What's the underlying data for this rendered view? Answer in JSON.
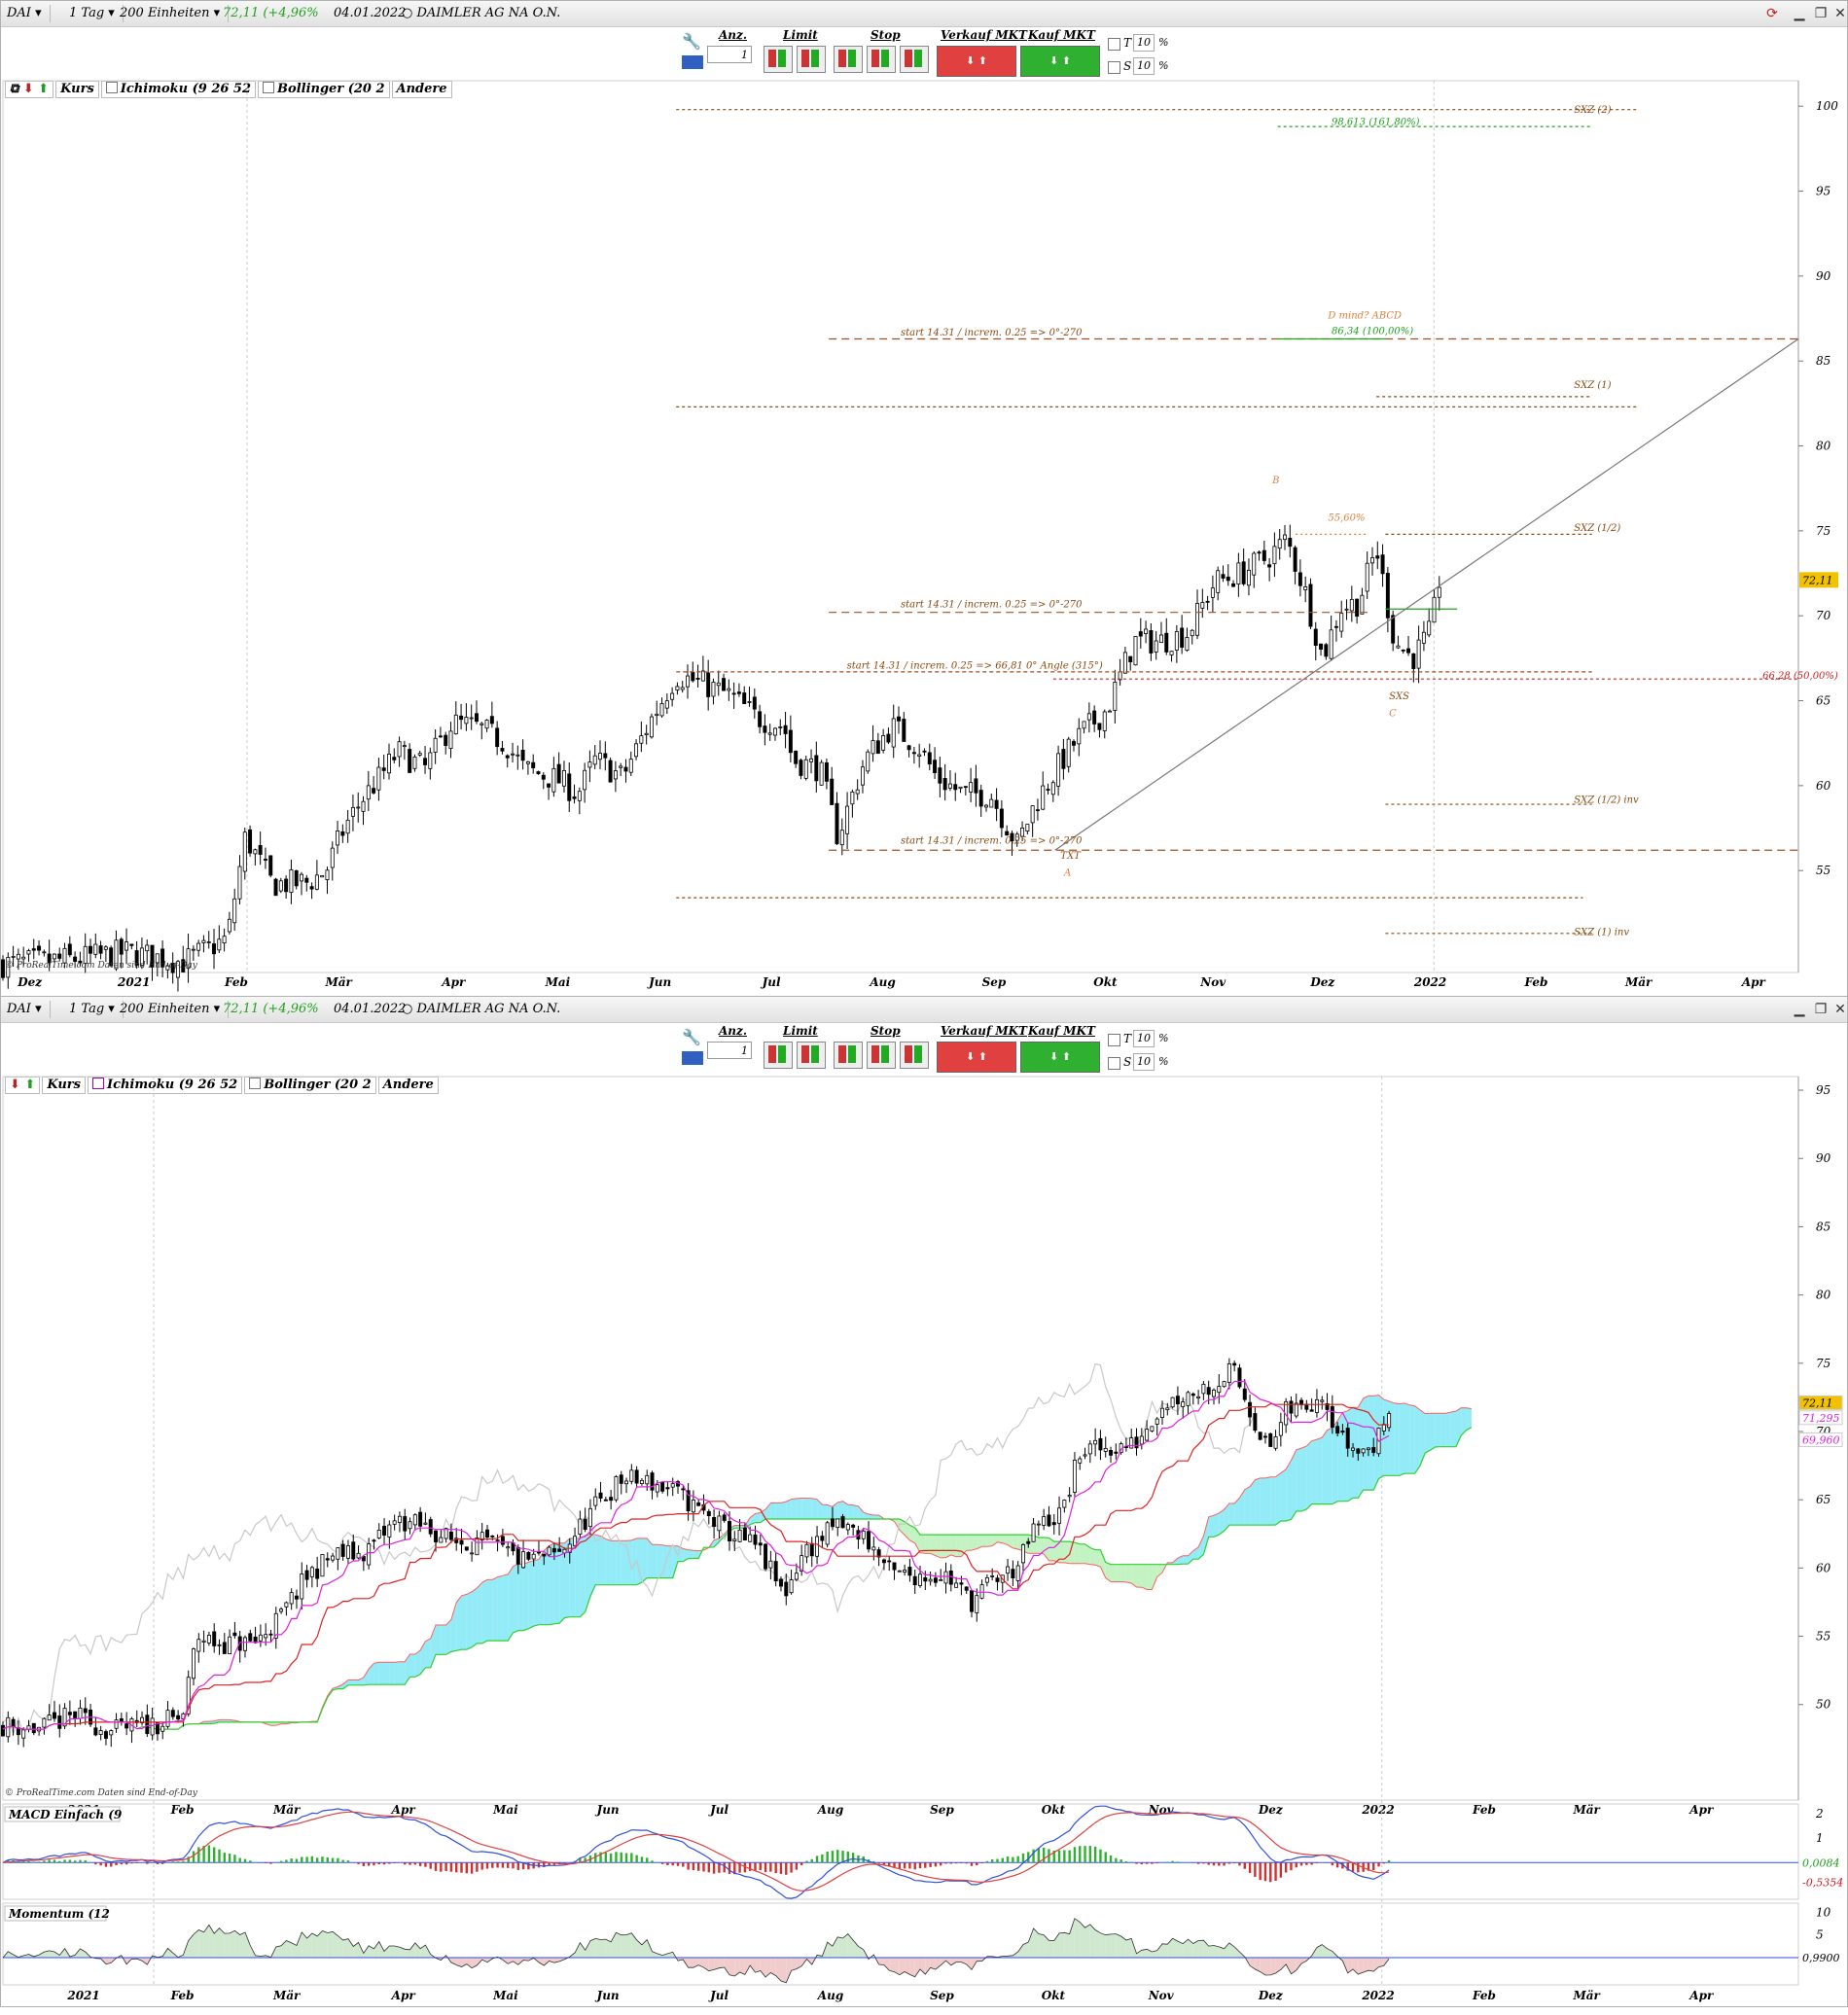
{
  "toolbar": {
    "symbol": "DAI",
    "interval": "1 Tag",
    "units": "200 Einheiten",
    "price": "72,11",
    "change": "(+4,96%",
    "date": "04.01.2022",
    "name": "DAIMLER AG NA O.N.",
    "qty_label": "Anz.",
    "qty_value": "1",
    "limit_label": "Limit",
    "stop_label": "Stop",
    "sell_label": "Verkauf MKT",
    "buy_label": "Kauf MKT",
    "t_label": "T",
    "s_label": "S",
    "t_value": "10",
    "s_value": "10",
    "pct": "%"
  },
  "legend_top": {
    "kurs": "Kurs",
    "ichimoku": "Ichimoku (9 26 52",
    "bollinger": "Bollinger (20 2",
    "andere": "Andere"
  },
  "legend_bottom": {
    "kurs": "Kurs",
    "ichimoku": "Ichimoku (9 26 52",
    "bollinger": "Bollinger (20 2",
    "andere": "Andere"
  },
  "watermark": "© ProRealTime.com  Daten sind End-of-Day",
  "colors": {
    "up": "#ffffff",
    "down": "#000000",
    "tenkan": "#e020e0",
    "kijun": "#e02020",
    "chikou": "#c8c8c8",
    "kumo_bull": "#7fe8f4",
    "kumo_bear": "#b8f0b8",
    "span_a": "#ff6060",
    "span_b": "#30d030",
    "macd": "#3050e0",
    "signal": "#e04040",
    "hist_pos": "#30b030",
    "hist_neg": "#d03030",
    "momentum": "#303030"
  },
  "chart_data": [
    {
      "type": "candlestick",
      "panel": "top",
      "ylim": [
        49,
        101.5
      ],
      "y_ticks": [
        55,
        60,
        65,
        70,
        75,
        80,
        85,
        90,
        95,
        100
      ],
      "x_ticks": [
        {
          "label": "Dez",
          "pos": 0.015
        },
        {
          "label": "2021",
          "pos": 0.073
        },
        {
          "label": "Feb",
          "pos": 0.13
        },
        {
          "label": "Mär",
          "pos": 0.187
        },
        {
          "label": "Apr",
          "pos": 0.251
        },
        {
          "label": "Mai",
          "pos": 0.309
        },
        {
          "label": "Jun",
          "pos": 0.366
        },
        {
          "label": "Jul",
          "pos": 0.428
        },
        {
          "label": "Aug",
          "pos": 0.49
        },
        {
          "label": "Sep",
          "pos": 0.552
        },
        {
          "label": "Okt",
          "pos": 0.614
        },
        {
          "label": "Nov",
          "pos": 0.674
        },
        {
          "label": "Dez",
          "pos": 0.735
        },
        {
          "label": "2022",
          "pos": 0.795
        },
        {
          "label": "Feb",
          "pos": 0.854
        },
        {
          "label": "Mär",
          "pos": 0.911
        },
        {
          "label": "Apr",
          "pos": 0.975
        }
      ],
      "last_price": "72,11",
      "close_path": [
        [
          0.0,
          49.5
        ],
        [
          0.04,
          49.8
        ],
        [
          0.07,
          50.2
        ],
        [
          0.1,
          49.6
        ],
        [
          0.125,
          51.0
        ],
        [
          0.135,
          57
        ],
        [
          0.15,
          54.2
        ],
        [
          0.17,
          54.3
        ],
        [
          0.18,
          55
        ],
        [
          0.19,
          57.5
        ],
        [
          0.2,
          59.2
        ],
        [
          0.21,
          60.5
        ],
        [
          0.22,
          62
        ],
        [
          0.235,
          61
        ],
        [
          0.25,
          63.7
        ],
        [
          0.265,
          63.4
        ],
        [
          0.28,
          62.5
        ],
        [
          0.29,
          61
        ],
        [
          0.31,
          60.3
        ],
        [
          0.32,
          59.5
        ],
        [
          0.33,
          61.5
        ],
        [
          0.345,
          60.5
        ],
        [
          0.36,
          63.7
        ],
        [
          0.375,
          66.5
        ],
        [
          0.39,
          66
        ],
        [
          0.405,
          65.3
        ],
        [
          0.42,
          64
        ],
        [
          0.435,
          63.5
        ],
        [
          0.44,
          61.5
        ],
        [
          0.455,
          61
        ],
        [
          0.465,
          57
        ],
        [
          0.48,
          61.5
        ],
        [
          0.495,
          63.5
        ],
        [
          0.51,
          62.3
        ],
        [
          0.52,
          60.5
        ],
        [
          0.535,
          59.5
        ],
        [
          0.55,
          59.5
        ],
        [
          0.565,
          56.5
        ],
        [
          0.575,
          59
        ],
        [
          0.59,
          61.5
        ],
        [
          0.6,
          63
        ],
        [
          0.615,
          64.5
        ],
        [
          0.63,
          68.5
        ],
        [
          0.645,
          68.5
        ],
        [
          0.66,
          69
        ],
        [
          0.675,
          72
        ],
        [
          0.69,
          72.5
        ],
        [
          0.705,
          73.5
        ],
        [
          0.715,
          74.5
        ],
        [
          0.725,
          71.5
        ],
        [
          0.735,
          67.5
        ],
        [
          0.745,
          70.5
        ],
        [
          0.755,
          70.8
        ],
        [
          0.765,
          74
        ],
        [
          0.775,
          68.5
        ],
        [
          0.785,
          67.5
        ],
        [
          0.795,
          69
        ],
        [
          0.8,
          72.1
        ]
      ],
      "annotations": [
        {
          "text": "SXZ (2)",
          "x": 0.875,
          "y": 99.6,
          "color": "#8a4a10"
        },
        {
          "text": "98,613 (161,80%)",
          "x": 0.74,
          "y": 98.9,
          "color": "#20a020"
        },
        {
          "text": "D mind? ABCD",
          "x": 0.738,
          "y": 87.5,
          "color": "#e08040"
        },
        {
          "text": "86,34 (100,00%)",
          "x": 0.74,
          "y": 86.6,
          "color": "#20a020"
        },
        {
          "text": "start 14.31 / increm. 0.25 => 0°-270",
          "x": 0.5,
          "y": 86.5,
          "color": "#8a4a10"
        },
        {
          "text": "SXZ (1)",
          "x": 0.875,
          "y": 83.4,
          "color": "#8a4a10"
        },
        {
          "text": "B",
          "x": 0.707,
          "y": 77.8,
          "color": "#e08040"
        },
        {
          "text": "55,60%",
          "x": 0.738,
          "y": 75.6,
          "color": "#e08040"
        },
        {
          "text": "SXZ (1/2)",
          "x": 0.875,
          "y": 75.0,
          "color": "#8a4a10"
        },
        {
          "text": "start 14.31 / increm. 0.25 => 0°-270",
          "x": 0.5,
          "y": 70.5,
          "color": "#8a4a10"
        },
        {
          "text": "start 14.31 / increm. 0.25 => 66,81 0° Angle (315°)",
          "x": 0.47,
          "y": 66.9,
          "color": "#8a4a10"
        },
        {
          "text": "66,28 (50,00%)",
          "x": 0.98,
          "y": 66.3,
          "color": "#d02020"
        },
        {
          "text": "SXS",
          "x": 0.772,
          "y": 65.1,
          "color": "#8a4a10"
        },
        {
          "text": "C",
          "x": 0.772,
          "y": 64.1,
          "color": "#e08040"
        },
        {
          "text": "SXZ (1/2) inv",
          "x": 0.875,
          "y": 59.0,
          "color": "#8a4a10"
        },
        {
          "text": "start 14.31 / increm. 0.25 => 0°-270",
          "x": 0.5,
          "y": 56.6,
          "color": "#8a4a10"
        },
        {
          "text": "TXT",
          "x": 0.589,
          "y": 55.7,
          "color": "#8a4a10"
        },
        {
          "text": "A",
          "x": 0.591,
          "y": 54.7,
          "color": "#e08040"
        },
        {
          "text": "SXZ (1) inv",
          "x": 0.875,
          "y": 51.2,
          "color": "#8a4a10"
        }
      ],
      "hlines": [
        {
          "y": 99.8,
          "x0": 0.375,
          "x1": 0.91,
          "color": "#8a4a10",
          "dash": "3,3"
        },
        {
          "y": 98.8,
          "x0": 0.71,
          "x1": 0.885,
          "color": "#20a020",
          "dash": "3,3"
        },
        {
          "y": 86.3,
          "x0": 0.46,
          "x1": 1.0,
          "color": "#a05020",
          "dash": "8,5"
        },
        {
          "y": 86.3,
          "x0": 0.71,
          "x1": 0.77,
          "color": "#20a020",
          "dash": ""
        },
        {
          "y": 82.3,
          "x0": 0.375,
          "x1": 0.91,
          "color": "#8a4a10",
          "dash": "3,3"
        },
        {
          "y": 82.9,
          "x0": 0.765,
          "x1": 0.885,
          "color": "#8a4a10",
          "dash": "3,3"
        },
        {
          "y": 74.8,
          "x0": 0.72,
          "x1": 0.76,
          "color": "#e08040",
          "dash": "2,3"
        },
        {
          "y": 74.8,
          "x0": 0.77,
          "x1": 0.885,
          "color": "#8a4a10",
          "dash": "3,3"
        },
        {
          "y": 70.2,
          "x0": 0.46,
          "x1": 0.76,
          "color": "#a05020",
          "dash": "8,5"
        },
        {
          "y": 70.4,
          "x0": 0.77,
          "x1": 0.81,
          "color": "#20a020",
          "dash": ""
        },
        {
          "y": 66.7,
          "x0": 0.375,
          "x1": 0.885,
          "color": "#a05020",
          "dash": "4,3"
        },
        {
          "y": 66.28,
          "x0": 0.585,
          "x1": 1.0,
          "color": "#d02020",
          "dash": "3,3"
        },
        {
          "y": 58.9,
          "x0": 0.77,
          "x1": 0.885,
          "color": "#8a4a10",
          "dash": "3,3"
        },
        {
          "y": 56.2,
          "x0": 0.46,
          "x1": 1.0,
          "color": "#a05020",
          "dash": "8,5"
        },
        {
          "y": 53.4,
          "x0": 0.375,
          "x1": 0.88,
          "color": "#8a4a10",
          "dash": "3,3"
        },
        {
          "y": 51.3,
          "x0": 0.77,
          "x1": 0.885,
          "color": "#8a4a10",
          "dash": "3,3"
        }
      ],
      "trendline": [
        [
          0.586,
          56.2
        ],
        [
          1.0,
          86.3
        ]
      ]
    },
    {
      "type": "candlestick",
      "panel": "bottom",
      "ylim": [
        43,
        96
      ],
      "y_ticks": [
        50,
        55,
        60,
        65,
        70,
        75,
        80,
        85,
        90,
        95
      ],
      "x_ticks": [
        {
          "label": "2021",
          "pos": 0.045
        },
        {
          "label": "Feb",
          "pos": 0.1
        },
        {
          "label": "Mär",
          "pos": 0.158
        },
        {
          "label": "Apr",
          "pos": 0.223
        },
        {
          "label": "Mai",
          "pos": 0.28
        },
        {
          "label": "Jun",
          "pos": 0.337
        },
        {
          "label": "Jul",
          "pos": 0.399
        },
        {
          "label": "Aug",
          "pos": 0.461
        },
        {
          "label": "Sep",
          "pos": 0.523
        },
        {
          "label": "Okt",
          "pos": 0.585
        },
        {
          "label": "Nov",
          "pos": 0.645
        },
        {
          "label": "Dez",
          "pos": 0.706
        },
        {
          "label": "2022",
          "pos": 0.766
        },
        {
          "label": "Feb",
          "pos": 0.825
        },
        {
          "label": "Mär",
          "pos": 0.882
        },
        {
          "label": "Apr",
          "pos": 0.946
        }
      ],
      "last_price": "72,11",
      "tenkan_value": "71,295",
      "kijun_value": "69,960",
      "close_path": [
        [
          0.0,
          48.5
        ],
        [
          0.02,
          48.2
        ],
        [
          0.04,
          49.2
        ],
        [
          0.06,
          48.0
        ],
        [
          0.08,
          48.5
        ],
        [
          0.1,
          49
        ],
        [
          0.108,
          55
        ],
        [
          0.12,
          54.5
        ],
        [
          0.14,
          54.5
        ],
        [
          0.155,
          56.5
        ],
        [
          0.17,
          59.5
        ],
        [
          0.185,
          61
        ],
        [
          0.2,
          61
        ],
        [
          0.22,
          63.5
        ],
        [
          0.235,
          63
        ],
        [
          0.25,
          62
        ],
        [
          0.27,
          61.8
        ],
        [
          0.29,
          60.5
        ],
        [
          0.31,
          61
        ],
        [
          0.33,
          64.5
        ],
        [
          0.345,
          66.5
        ],
        [
          0.36,
          66.3
        ],
        [
          0.375,
          65.5
        ],
        [
          0.39,
          64
        ],
        [
          0.405,
          62.5
        ],
        [
          0.42,
          61.5
        ],
        [
          0.435,
          58
        ],
        [
          0.445,
          61
        ],
        [
          0.465,
          63.2
        ],
        [
          0.48,
          62.3
        ],
        [
          0.495,
          59.5
        ],
        [
          0.51,
          59.5
        ],
        [
          0.525,
          59.5
        ],
        [
          0.54,
          57.5
        ],
        [
          0.55,
          59
        ],
        [
          0.565,
          60
        ],
        [
          0.575,
          63
        ],
        [
          0.59,
          64
        ],
        [
          0.6,
          68.5
        ],
        [
          0.615,
          68.8
        ],
        [
          0.63,
          69
        ],
        [
          0.645,
          72
        ],
        [
          0.66,
          72.8
        ],
        [
          0.675,
          73.5
        ],
        [
          0.685,
          74.5
        ],
        [
          0.695,
          71.5
        ],
        [
          0.705,
          68.5
        ],
        [
          0.715,
          71.5
        ],
        [
          0.725,
          71.8
        ],
        [
          0.735,
          73
        ],
        [
          0.745,
          69.5
        ],
        [
          0.755,
          68.5
        ],
        [
          0.765,
          69
        ],
        [
          0.772,
          72.1
        ]
      ]
    },
    {
      "type": "line",
      "panel": "macd",
      "title": "MACD Einfach (9",
      "y_ticks": [
        2,
        1
      ],
      "ylim": [
        -1.5,
        2.4
      ],
      "value_labels": [
        "0,0084",
        "-0,5354"
      ]
    },
    {
      "type": "line",
      "panel": "momentum",
      "title": "Momentum (12",
      "y_ticks": [
        10,
        5
      ],
      "ylim": [
        -6,
        12
      ],
      "value_labels": [
        "0,9900"
      ]
    }
  ]
}
